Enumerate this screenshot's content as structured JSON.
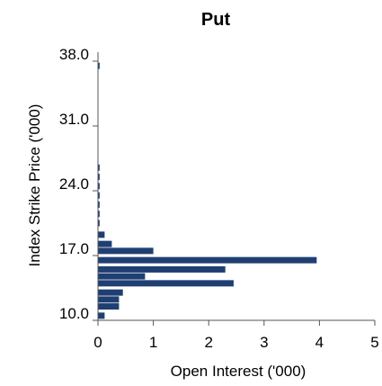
{
  "chart_data": {
    "type": "bar",
    "orientation": "horizontal",
    "title": "Put",
    "xlabel": "Open Interest ('000)",
    "ylabel": "Index Strike Price ('000)",
    "xlim": [
      0,
      5
    ],
    "ylim": [
      10,
      38
    ],
    "x_ticks": [
      0,
      1,
      2,
      3,
      4,
      5
    ],
    "x_tick_labels": [
      "0",
      "1",
      "2",
      "3",
      "4",
      "5"
    ],
    "y_ticks": [
      10,
      17,
      24,
      31,
      38
    ],
    "y_tick_labels": [
      "10.0",
      "17.0",
      "24.0",
      "31.0",
      "38.0"
    ],
    "grid": false,
    "legend": false,
    "bar_color": "#1f3f73",
    "bars": [
      {
        "strike": 10.5,
        "open_interest": 0.12
      },
      {
        "strike": 11.5,
        "open_interest": 0.38
      },
      {
        "strike": 12.25,
        "open_interest": 0.38
      },
      {
        "strike": 13.0,
        "open_interest": 0.45
      },
      {
        "strike": 14.0,
        "open_interest": 2.45
      },
      {
        "strike": 14.75,
        "open_interest": 0.85
      },
      {
        "strike": 15.5,
        "open_interest": 2.3
      },
      {
        "strike": 16.5,
        "open_interest": 3.95
      },
      {
        "strike": 17.5,
        "open_interest": 1.0
      },
      {
        "strike": 18.25,
        "open_interest": 0.25
      },
      {
        "strike": 19.25,
        "open_interest": 0.12
      },
      {
        "strike": 20.5,
        "open_interest": 0.03
      },
      {
        "strike": 21.5,
        "open_interest": 0.03
      },
      {
        "strike": 22.5,
        "open_interest": 0.03
      },
      {
        "strike": 23.5,
        "open_interest": 0.03
      },
      {
        "strike": 24.5,
        "open_interest": 0.03
      },
      {
        "strike": 25.5,
        "open_interest": 0.03
      },
      {
        "strike": 26.5,
        "open_interest": 0.03
      },
      {
        "strike": 37.5,
        "open_interest": 0.03
      }
    ]
  }
}
